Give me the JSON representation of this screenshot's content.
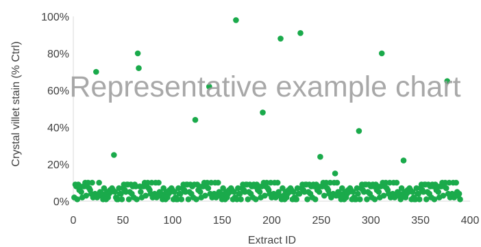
{
  "chart_data": {
    "type": "scatter",
    "xlabel": "Extract ID",
    "ylabel": "Crystal villet stain (% Ctrl)",
    "xlim": [
      0,
      400
    ],
    "ylim": [
      0,
      100
    ],
    "x_ticks": [
      "0",
      "50",
      "100",
      "150",
      "200",
      "250",
      "300",
      "350",
      "400"
    ],
    "y_ticks": [
      "0%",
      "20%",
      "40%",
      "60%",
      "80%",
      "100%"
    ],
    "grid": false,
    "legend": "none",
    "watermark": "Representative example chart",
    "point_color": "#1aaa4b",
    "highlighted_points": [
      {
        "x": 23,
        "y": 70
      },
      {
        "x": 41,
        "y": 25
      },
      {
        "x": 65,
        "y": 80
      },
      {
        "x": 66,
        "y": 72
      },
      {
        "x": 123,
        "y": 44
      },
      {
        "x": 137,
        "y": 62
      },
      {
        "x": 164,
        "y": 98
      },
      {
        "x": 191,
        "y": 48
      },
      {
        "x": 209,
        "y": 88
      },
      {
        "x": 229,
        "y": 91
      },
      {
        "x": 249,
        "y": 24
      },
      {
        "x": 264,
        "y": 15
      },
      {
        "x": 288,
        "y": 38
      },
      {
        "x": 311,
        "y": 80
      },
      {
        "x": 333,
        "y": 22
      },
      {
        "x": 377,
        "y": 65
      }
    ],
    "baseline_y": [
      8,
      4,
      1,
      9,
      6,
      3,
      7,
      2,
      10,
      5,
      1,
      8,
      4,
      6,
      9,
      3,
      2,
      7,
      5,
      10,
      1,
      6,
      8,
      3,
      4,
      9,
      2,
      7,
      5,
      1,
      10,
      6,
      4,
      8,
      3,
      2,
      9,
      7,
      5,
      1
    ],
    "baseline_count": 390
  }
}
